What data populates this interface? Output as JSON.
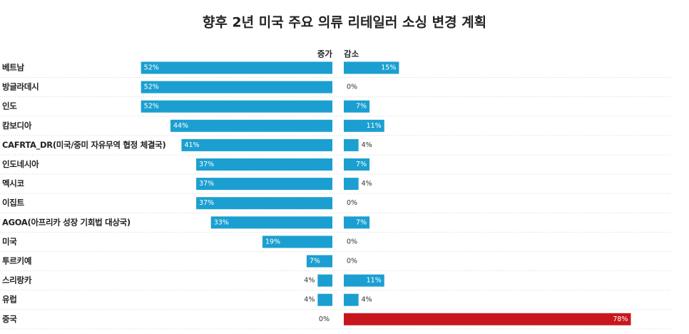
{
  "chart_data": {
    "type": "diverging-bar",
    "title": "향후 2년 미국 주요 의류 리테일러 소싱 변경 계획",
    "categories": [
      "베트남",
      "방글라데시",
      "인도",
      "캄보디아",
      "CAFRTA_DR(미국/중미 자유무역 협정 체결국)",
      "인도네시아",
      "멕시코",
      "이집트",
      "AGOA(아프리카 성장 기회법 대상국)",
      "미국",
      "투르키예",
      "스리랑카",
      "유럽",
      "중국"
    ],
    "series": [
      {
        "name": "증가",
        "color": "#1b9fd0",
        "values": [
          52,
          52,
          52,
          44,
          41,
          37,
          37,
          37,
          33,
          19,
          7,
          4,
          4,
          0
        ],
        "value_labels": [
          "52%",
          "52%",
          "52%",
          "44%",
          "41%",
          "37%",
          "37%",
          "37%",
          "33%",
          "19%",
          "7%",
          "4%",
          "4%",
          "0%"
        ]
      },
      {
        "name": "감소",
        "color": "#1b9fd0",
        "colors": [
          "#1b9fd0",
          "#1b9fd0",
          "#1b9fd0",
          "#1b9fd0",
          "#1b9fd0",
          "#1b9fd0",
          "#1b9fd0",
          "#1b9fd0",
          "#1b9fd0",
          "#1b9fd0",
          "#1b9fd0",
          "#1b9fd0",
          "#1b9fd0",
          "#c8161d"
        ],
        "values": [
          15,
          0,
          7,
          11,
          4,
          7,
          4,
          0,
          7,
          0,
          0,
          11,
          4,
          78
        ],
        "value_labels": [
          "15%",
          "0%",
          "7%",
          "11%",
          "4%",
          "7%",
          "4%",
          "0%",
          "7%",
          "0%",
          "0%",
          "11%",
          "4%",
          "78%"
        ]
      }
    ]
  }
}
